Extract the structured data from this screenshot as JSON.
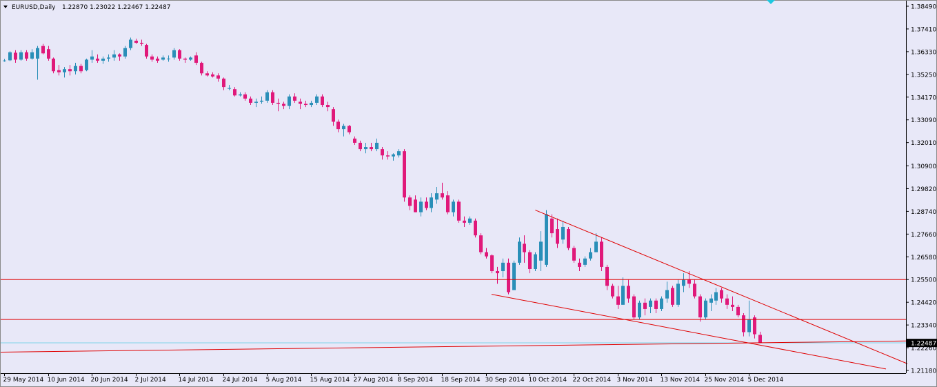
{
  "window": {
    "symbol_label": "EURUSD,Daily",
    "ohlc_label": "1.22870 1.23022 1.22467 1.22487"
  },
  "colors": {
    "background": "#e8e8f8",
    "bull": "#2a8fb8",
    "bear": "#e0197a",
    "trendline": "#e00000",
    "bid_line": "#7fd4e8",
    "axis": "#000000",
    "current_price_bg": "#000000",
    "current_price_fg": "#ffffff"
  },
  "price_axis": {
    "ticks": [
      "1.38490",
      "1.37410",
      "1.36330",
      "1.35250",
      "1.34170",
      "1.33090",
      "1.32010",
      "1.30900",
      "1.29820",
      "1.28740",
      "1.27660",
      "1.26580",
      "1.25500",
      "1.24420",
      "1.23340",
      "1.22260",
      "1.21180"
    ],
    "current_price": "1.22487"
  },
  "time_axis": {
    "ticks": [
      "29 May 2014",
      "10 Jun 2014",
      "20 Jun 2014",
      "2 Jul 2014",
      "14 Jul 2014",
      "24 Jul 2014",
      "5 Aug 2014",
      "15 Aug 2014",
      "27 Aug 2014",
      "8 Sep 2014",
      "18 Sep 2014",
      "30 Sep 2014",
      "10 Oct 2014",
      "22 Oct 2014",
      "3 Nov 2014",
      "13 Nov 2014",
      "25 Nov 2014",
      "5 Dec 2014"
    ]
  },
  "chart_data": {
    "type": "candlestick",
    "symbol": "EURUSD",
    "timeframe": "Daily",
    "ylim": [
      1.2118,
      1.3849
    ],
    "grid": false,
    "candles": [
      [
        1.359,
        1.3598,
        1.3585,
        1.3591
      ],
      [
        1.3592,
        1.3635,
        1.3588,
        1.363
      ],
      [
        1.3628,
        1.364,
        1.358,
        1.3595
      ],
      [
        1.3595,
        1.364,
        1.359,
        1.363
      ],
      [
        1.363,
        1.364,
        1.359,
        1.36
      ],
      [
        1.36,
        1.3645,
        1.3595,
        1.363
      ],
      [
        1.36,
        1.366,
        1.35,
        1.365
      ],
      [
        1.366,
        1.367,
        1.362,
        1.3625
      ],
      [
        1.3645,
        1.366,
        1.359,
        1.36
      ],
      [
        1.36,
        1.3605,
        1.353,
        1.354
      ],
      [
        1.3545,
        1.357,
        1.352,
        1.3535
      ],
      [
        1.3535,
        1.356,
        1.351,
        1.355
      ],
      [
        1.355,
        1.357,
        1.352,
        1.354
      ],
      [
        1.354,
        1.358,
        1.3525,
        1.3565
      ],
      [
        1.3565,
        1.3575,
        1.353,
        1.354
      ],
      [
        1.3545,
        1.36,
        1.354,
        1.3595
      ],
      [
        1.3595,
        1.364,
        1.358,
        1.361
      ],
      [
        1.36,
        1.362,
        1.358,
        1.359
      ],
      [
        1.359,
        1.361,
        1.3575,
        1.36
      ],
      [
        1.36,
        1.362,
        1.3585,
        1.3605
      ],
      [
        1.3605,
        1.364,
        1.359,
        1.362
      ],
      [
        1.362,
        1.3625,
        1.359,
        1.361
      ],
      [
        1.361,
        1.366,
        1.36,
        1.365
      ],
      [
        1.365,
        1.37,
        1.364,
        1.369
      ],
      [
        1.3685,
        1.3695,
        1.367,
        1.3675
      ],
      [
        1.3675,
        1.369,
        1.366,
        1.367
      ],
      [
        1.3665,
        1.367,
        1.36,
        1.361
      ],
      [
        1.361,
        1.362,
        1.3585,
        1.3595
      ],
      [
        1.36,
        1.361,
        1.358,
        1.359
      ],
      [
        1.3595,
        1.3615,
        1.359,
        1.3605
      ],
      [
        1.36,
        1.3615,
        1.3585,
        1.36
      ],
      [
        1.3605,
        1.365,
        1.3595,
        1.364
      ],
      [
        1.364,
        1.3645,
        1.359,
        1.36
      ],
      [
        1.36,
        1.3605,
        1.358,
        1.3595
      ],
      [
        1.3595,
        1.361,
        1.359,
        1.3605
      ],
      [
        1.3615,
        1.363,
        1.357,
        1.358
      ],
      [
        1.358,
        1.3585,
        1.352,
        1.353
      ],
      [
        1.353,
        1.354,
        1.3515,
        1.352
      ],
      [
        1.3525,
        1.3535,
        1.351,
        1.3515
      ],
      [
        1.352,
        1.353,
        1.349,
        1.3505
      ],
      [
        1.3505,
        1.351,
        1.345,
        1.3465
      ],
      [
        1.346,
        1.3475,
        1.345,
        1.346
      ],
      [
        1.3455,
        1.3465,
        1.342,
        1.3425
      ],
      [
        1.3425,
        1.344,
        1.342,
        1.343
      ],
      [
        1.343,
        1.344,
        1.34,
        1.341
      ],
      [
        1.341,
        1.342,
        1.338,
        1.339
      ],
      [
        1.339,
        1.341,
        1.337,
        1.3395
      ],
      [
        1.3395,
        1.342,
        1.3385,
        1.34
      ],
      [
        1.34,
        1.345,
        1.339,
        1.344
      ],
      [
        1.344,
        1.345,
        1.338,
        1.339
      ],
      [
        1.339,
        1.341,
        1.335,
        1.3385
      ],
      [
        1.3385,
        1.3395,
        1.336,
        1.3375
      ],
      [
        1.3375,
        1.343,
        1.336,
        1.342
      ],
      [
        1.342,
        1.3435,
        1.339,
        1.34
      ],
      [
        1.3395,
        1.341,
        1.336,
        1.3385
      ],
      [
        1.3385,
        1.34,
        1.337,
        1.338
      ],
      [
        1.338,
        1.34,
        1.337,
        1.339
      ],
      [
        1.339,
        1.343,
        1.338,
        1.342
      ],
      [
        1.342,
        1.343,
        1.337,
        1.338
      ],
      [
        1.338,
        1.3395,
        1.335,
        1.337
      ],
      [
        1.336,
        1.337,
        1.328,
        1.33
      ],
      [
        1.33,
        1.331,
        1.325,
        1.3265
      ],
      [
        1.3265,
        1.329,
        1.323,
        1.328
      ],
      [
        1.328,
        1.3285,
        1.324,
        1.325
      ],
      [
        1.322,
        1.323,
        1.319,
        1.32
      ],
      [
        1.32,
        1.321,
        1.316,
        1.317
      ],
      [
        1.317,
        1.32,
        1.315,
        1.318
      ],
      [
        1.318,
        1.32,
        1.316,
        1.317
      ],
      [
        1.317,
        1.322,
        1.316,
        1.32
      ],
      [
        1.317,
        1.318,
        1.312,
        1.314
      ],
      [
        1.314,
        1.316,
        1.312,
        1.3135
      ],
      [
        1.3135,
        1.315,
        1.3115,
        1.3145
      ],
      [
        1.314,
        1.317,
        1.313,
        1.316
      ],
      [
        1.316,
        1.317,
        1.292,
        1.294
      ],
      [
        1.294,
        1.295,
        1.288,
        1.29
      ],
      [
        1.293,
        1.295,
        1.287,
        1.287
      ],
      [
        1.287,
        1.294,
        1.285,
        1.292
      ],
      [
        1.292,
        1.294,
        1.288,
        1.289
      ],
      [
        1.289,
        1.296,
        1.287,
        1.294
      ],
      [
        1.293,
        1.299,
        1.291,
        1.296
      ],
      [
        1.296,
        1.301,
        1.293,
        1.294
      ],
      [
        1.295,
        1.297,
        1.286,
        1.287
      ],
      [
        1.287,
        1.293,
        1.285,
        1.292
      ],
      [
        1.292,
        1.293,
        1.282,
        1.283
      ],
      [
        1.283,
        1.285,
        1.28,
        1.282
      ],
      [
        1.282,
        1.285,
        1.281,
        1.284
      ],
      [
        1.283,
        1.284,
        1.275,
        1.276
      ],
      [
        1.276,
        1.277,
        1.267,
        1.268
      ],
      [
        1.268,
        1.27,
        1.265,
        1.266
      ],
      [
        1.2665,
        1.267,
        1.258,
        1.259
      ],
      [
        1.259,
        1.261,
        1.253,
        1.258
      ],
      [
        1.259,
        1.265,
        1.256,
        1.263
      ],
      [
        1.263,
        1.265,
        1.248,
        1.249
      ],
      [
        1.25,
        1.264,
        1.25,
        1.263
      ],
      [
        1.263,
        1.275,
        1.262,
        1.273
      ],
      [
        1.272,
        1.276,
        1.263,
        1.268
      ],
      [
        1.268,
        1.269,
        1.258,
        1.26
      ],
      [
        1.26,
        1.268,
        1.259,
        1.267
      ],
      [
        1.264,
        1.278,
        1.259,
        1.273
      ],
      [
        1.262,
        1.288,
        1.261,
        1.286
      ],
      [
        1.284,
        1.286,
        1.275,
        1.277
      ],
      [
        1.279,
        1.284,
        1.27,
        1.272
      ],
      [
        1.274,
        1.283,
        1.272,
        1.28
      ],
      [
        1.279,
        1.28,
        1.269,
        1.27
      ],
      [
        1.27,
        1.271,
        1.263,
        1.264
      ],
      [
        1.263,
        1.265,
        1.259,
        1.261
      ],
      [
        1.262,
        1.266,
        1.261,
        1.265
      ],
      [
        1.265,
        1.27,
        1.264,
        1.268
      ],
      [
        1.268,
        1.277,
        1.268,
        1.273
      ],
      [
        1.273,
        1.275,
        1.259,
        1.261
      ],
      [
        1.261,
        1.262,
        1.25,
        1.252
      ],
      [
        1.252,
        1.253,
        1.246,
        1.247
      ],
      [
        1.247,
        1.252,
        1.241,
        1.243
      ],
      [
        1.243,
        1.256,
        1.243,
        1.252
      ],
      [
        1.252,
        1.255,
        1.244,
        1.246
      ],
      [
        1.247,
        1.248,
        1.236,
        1.237
      ],
      [
        1.237,
        1.245,
        1.236,
        1.244
      ],
      [
        1.244,
        1.246,
        1.238,
        1.241
      ],
      [
        1.242,
        1.246,
        1.239,
        1.245
      ],
      [
        1.245,
        1.246,
        1.239,
        1.241
      ],
      [
        1.241,
        1.247,
        1.24,
        1.246
      ],
      [
        1.246,
        1.254,
        1.244,
        1.25
      ],
      [
        1.251,
        1.252,
        1.242,
        1.243
      ],
      [
        1.243,
        1.255,
        1.242,
        1.253
      ],
      [
        1.252,
        1.258,
        1.249,
        1.255
      ],
      [
        1.255,
        1.259,
        1.251,
        1.253
      ],
      [
        1.253,
        1.255,
        1.246,
        1.247
      ],
      [
        1.247,
        1.248,
        1.235,
        1.237
      ],
      [
        1.237,
        1.246,
        1.236,
        1.245
      ],
      [
        1.244,
        1.248,
        1.24,
        1.246
      ],
      [
        1.245,
        1.251,
        1.243,
        1.249
      ],
      [
        1.25,
        1.251,
        1.244,
        1.246
      ],
      [
        1.246,
        1.248,
        1.241,
        1.243
      ],
      [
        1.243,
        1.247,
        1.24,
        1.242
      ],
      [
        1.242,
        1.243,
        1.237,
        1.238
      ],
      [
        1.238,
        1.239,
        1.228,
        1.23
      ],
      [
        1.23,
        1.245,
        1.228,
        1.236
      ],
      [
        1.237,
        1.238,
        1.227,
        1.229
      ],
      [
        1.2287,
        1.2302,
        1.2247,
        1.2249
      ]
    ],
    "trendlines": [
      {
        "from": [
          1.287,
          1.2492
        ],
        "to": [
          1.3,
          1.2118
        ]
      },
      {
        "from": [
          1.288,
          1.248
        ],
        "to": [
          1.3,
          1.213
        ]
      },
      {
        "level": 1.255
      },
      {
        "level": 1.236
      },
      {
        "from": [
          1.2205,
          0
        ],
        "to": [
          1.226,
          1
        ]
      }
    ],
    "bid_level": 1.2249
  }
}
